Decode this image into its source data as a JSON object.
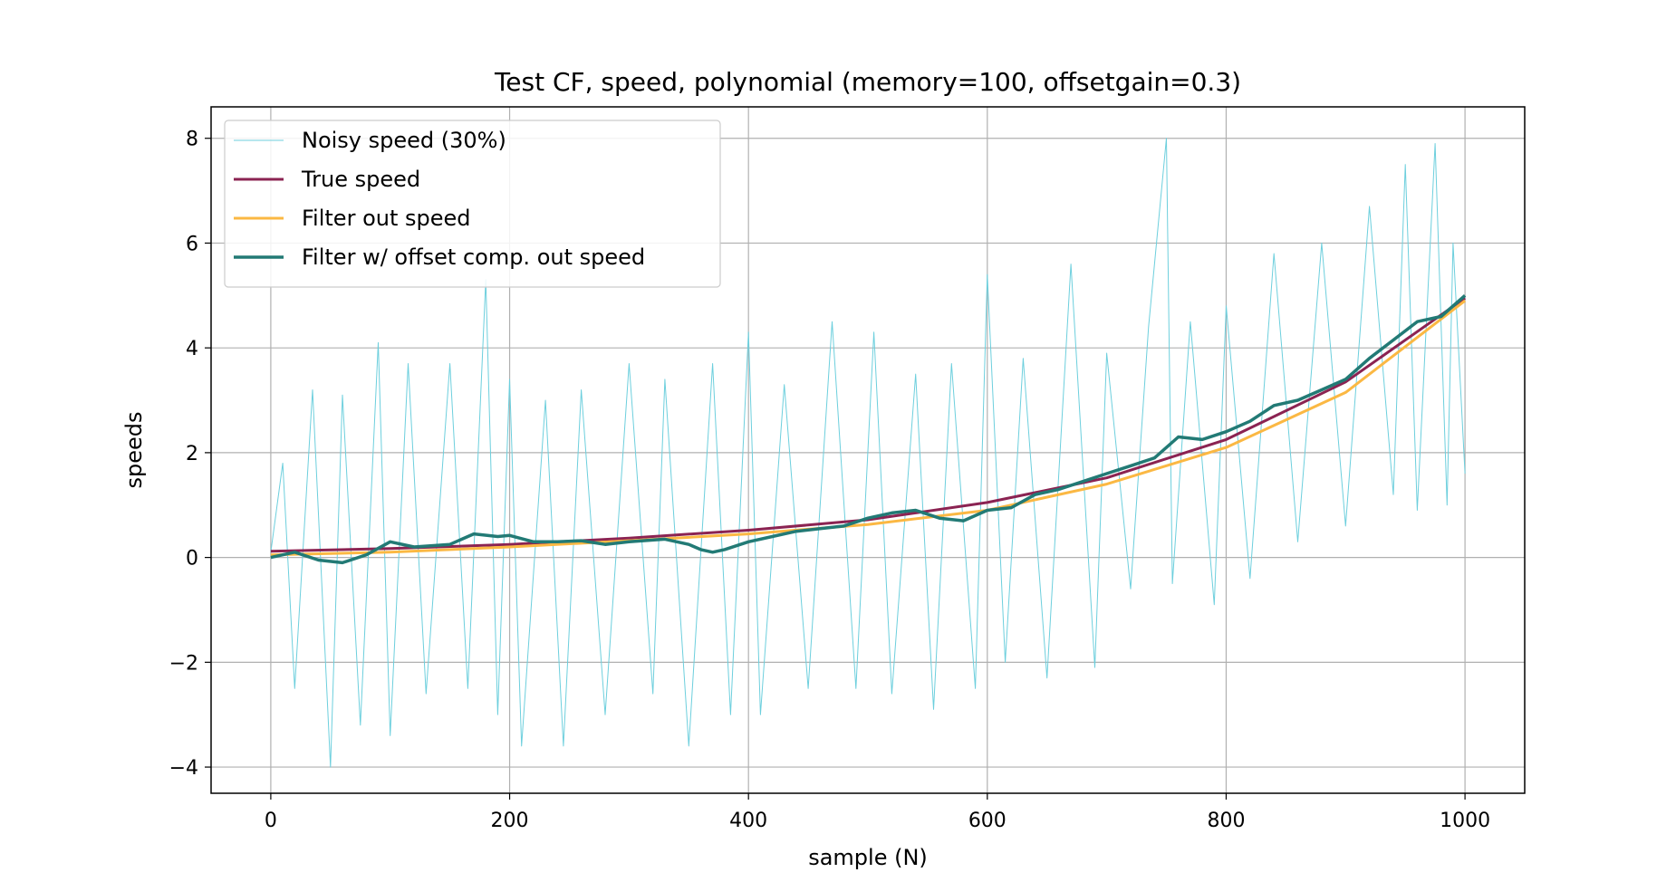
{
  "chart_data": {
    "type": "line",
    "title": "Test CF, speed, polynomial (memory=100, offsetgain=0.3)",
    "xlabel": "sample (N)",
    "ylabel": "speeds",
    "xlim": [
      -50,
      1050
    ],
    "ylim": [
      -4.5,
      8.6
    ],
    "xticks": [
      0,
      200,
      400,
      600,
      800,
      1000
    ],
    "yticks": [
      -4,
      -2,
      0,
      2,
      4,
      6,
      8
    ],
    "xtick_labels": [
      "0",
      "200",
      "400",
      "600",
      "800",
      "1000"
    ],
    "ytick_labels": [
      "−4",
      "−2",
      "0",
      "2",
      "4",
      "6",
      "8"
    ],
    "grid": true,
    "legend_position": "top-left",
    "series": [
      {
        "name": "Noisy speed (30%)",
        "color": "#6dcfdd",
        "style": "noise",
        "x": [
          0,
          10,
          20,
          35,
          50,
          60,
          75,
          90,
          100,
          115,
          130,
          150,
          165,
          180,
          190,
          200,
          210,
          230,
          245,
          260,
          280,
          300,
          320,
          330,
          350,
          370,
          385,
          400,
          410,
          430,
          450,
          470,
          490,
          505,
          520,
          540,
          555,
          570,
          590,
          600,
          615,
          630,
          650,
          670,
          690,
          700,
          720,
          735,
          750,
          755,
          770,
          790,
          800,
          820,
          840,
          860,
          880,
          900,
          920,
          940,
          950,
          960,
          975,
          985,
          990,
          1000
        ],
        "values": [
          0.1,
          1.8,
          -2.5,
          3.2,
          -4.0,
          3.1,
          -3.2,
          4.1,
          -3.4,
          3.7,
          -2.6,
          3.7,
          -2.5,
          5.3,
          -3.0,
          3.4,
          -3.6,
          3.0,
          -3.6,
          3.2,
          -3.0,
          3.7,
          -2.6,
          3.4,
          -3.6,
          3.7,
          -3.0,
          4.3,
          -3.0,
          3.3,
          -2.5,
          4.5,
          -2.5,
          4.3,
          -2.6,
          3.5,
          -2.9,
          3.7,
          -2.5,
          5.4,
          -2.0,
          3.8,
          -2.3,
          5.6,
          -2.1,
          3.9,
          -0.6,
          4.4,
          8.0,
          -0.5,
          4.5,
          -0.9,
          4.8,
          -0.4,
          5.8,
          0.3,
          6.0,
          0.6,
          6.7,
          1.2,
          7.5,
          0.9,
          7.9,
          1.0,
          6.0,
          1.6
        ]
      },
      {
        "name": "True speed",
        "color": "#8b2352",
        "style": "line",
        "x": [
          0,
          100,
          200,
          300,
          400,
          500,
          600,
          700,
          800,
          900,
          1000
        ],
        "values": [
          0.12,
          0.17,
          0.25,
          0.37,
          0.52,
          0.72,
          1.05,
          1.52,
          2.25,
          3.35,
          4.95
        ]
      },
      {
        "name": "Filter out speed",
        "color": "#fbb843",
        "style": "line",
        "x": [
          0,
          100,
          200,
          300,
          400,
          500,
          600,
          700,
          800,
          900,
          1000
        ],
        "values": [
          0.05,
          0.1,
          0.2,
          0.32,
          0.45,
          0.63,
          0.9,
          1.4,
          2.1,
          3.15,
          4.9
        ]
      },
      {
        "name": "Filter w/ offset comp. out speed",
        "color": "#227a75",
        "style": "thick-line",
        "x": [
          0,
          20,
          40,
          60,
          80,
          100,
          120,
          150,
          170,
          190,
          200,
          220,
          240,
          260,
          280,
          300,
          330,
          350,
          360,
          370,
          380,
          400,
          420,
          440,
          460,
          480,
          500,
          520,
          540,
          560,
          580,
          600,
          620,
          640,
          660,
          680,
          700,
          720,
          740,
          760,
          780,
          800,
          820,
          840,
          860,
          880,
          900,
          920,
          940,
          960,
          980,
          1000
        ],
        "values": [
          0.0,
          0.1,
          -0.05,
          -0.1,
          0.05,
          0.3,
          0.2,
          0.25,
          0.45,
          0.4,
          0.42,
          0.3,
          0.3,
          0.32,
          0.25,
          0.3,
          0.35,
          0.25,
          0.15,
          0.1,
          0.15,
          0.3,
          0.4,
          0.5,
          0.55,
          0.6,
          0.75,
          0.85,
          0.9,
          0.75,
          0.7,
          0.9,
          0.95,
          1.2,
          1.3,
          1.45,
          1.6,
          1.75,
          1.9,
          2.3,
          2.25,
          2.4,
          2.6,
          2.9,
          3.0,
          3.2,
          3.4,
          3.8,
          4.15,
          4.5,
          4.6,
          5.0
        ]
      }
    ]
  }
}
